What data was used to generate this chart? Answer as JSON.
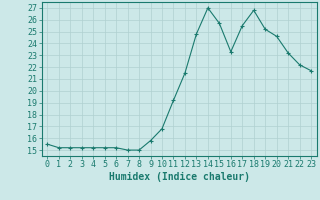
{
  "x": [
    0,
    1,
    2,
    3,
    4,
    5,
    6,
    7,
    8,
    9,
    10,
    11,
    12,
    13,
    14,
    15,
    16,
    17,
    18,
    19,
    20,
    21,
    22,
    23
  ],
  "y": [
    15.5,
    15.2,
    15.2,
    15.2,
    15.2,
    15.2,
    15.2,
    15.0,
    15.0,
    15.8,
    16.8,
    19.2,
    21.5,
    24.8,
    27.0,
    25.7,
    23.3,
    25.5,
    26.8,
    25.2,
    24.6,
    23.2,
    22.2,
    21.7
  ],
  "line_color": "#1a7a6e",
  "marker": "+",
  "marker_size": 3,
  "xlabel": "Humidex (Indice chaleur)",
  "xlim": [
    -0.5,
    23.5
  ],
  "ylim": [
    14.5,
    27.5
  ],
  "yticks": [
    15,
    16,
    17,
    18,
    19,
    20,
    21,
    22,
    23,
    24,
    25,
    26,
    27
  ],
  "xticks": [
    0,
    1,
    2,
    3,
    4,
    5,
    6,
    7,
    8,
    9,
    10,
    11,
    12,
    13,
    14,
    15,
    16,
    17,
    18,
    19,
    20,
    21,
    22,
    23
  ],
  "bg_color": "#cce8e8",
  "grid_color": "#b0d0d0",
  "line_width": 0.8,
  "tick_color": "#1a7a6e",
  "label_color": "#1a7a6e",
  "tick_fontsize": 6,
  "xlabel_fontsize": 7
}
